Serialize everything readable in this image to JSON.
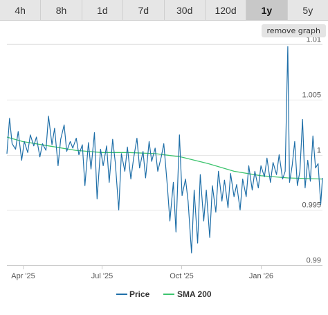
{
  "range_tabs": [
    {
      "label": "4h",
      "active": false
    },
    {
      "label": "8h",
      "active": false
    },
    {
      "label": "1d",
      "active": false
    },
    {
      "label": "7d",
      "active": false
    },
    {
      "label": "30d",
      "active": false
    },
    {
      "label": "120d",
      "active": false
    },
    {
      "label": "1y",
      "active": true
    },
    {
      "label": "5y",
      "active": false
    }
  ],
  "remove_graph_label": "remove graph",
  "chart_data": {
    "type": "line",
    "x_range": [
      "2025-03-14",
      "2026-03-13"
    ],
    "ylim": [
      0.99,
      1.01
    ],
    "y_ticks": [
      {
        "value": 0.99,
        "label": "0.99"
      },
      {
        "value": 0.995,
        "label": "0.995"
      },
      {
        "value": 1.0,
        "label": "1"
      },
      {
        "value": 1.005,
        "label": "1.005"
      },
      {
        "value": 1.01,
        "label": "1.01"
      }
    ],
    "x_ticks": [
      {
        "value": "2025-04-01",
        "label": "Apr '25"
      },
      {
        "value": "2025-07-01",
        "label": "Jul '25"
      },
      {
        "value": "2025-10-01",
        "label": "Oct '25"
      },
      {
        "value": "2026-01-01",
        "label": "Jan '26"
      }
    ],
    "grid": true,
    "legend_position": "bottom-center",
    "series": [
      {
        "name": "Price",
        "color": "#1f6fa8",
        "points": [
          [
            "2025-03-14",
            1.0001
          ],
          [
            "2025-03-17",
            1.0033
          ],
          [
            "2025-03-20",
            1.001
          ],
          [
            "2025-03-24",
            1.0005
          ],
          [
            "2025-03-27",
            1.0021
          ],
          [
            "2025-03-31",
            0.9995
          ],
          [
            "2025-04-03",
            1.0012
          ],
          [
            "2025-04-07",
            1.0002
          ],
          [
            "2025-04-10",
            1.0018
          ],
          [
            "2025-04-14",
            1.0008
          ],
          [
            "2025-04-17",
            1.0016
          ],
          [
            "2025-04-21",
            0.9998
          ],
          [
            "2025-04-24",
            1.001
          ],
          [
            "2025-04-28",
            1.0004
          ],
          [
            "2025-05-01",
            1.0035
          ],
          [
            "2025-05-05",
            1.0009
          ],
          [
            "2025-05-08",
            1.0024
          ],
          [
            "2025-05-12",
            0.999
          ],
          [
            "2025-05-15",
            1.0014
          ],
          [
            "2025-05-19",
            1.0027
          ],
          [
            "2025-05-22",
            1.0003
          ],
          [
            "2025-05-26",
            1.0012
          ],
          [
            "2025-05-29",
            1.0006
          ],
          [
            "2025-06-02",
            1.0015
          ],
          [
            "2025-06-05",
            1.0
          ],
          [
            "2025-06-09",
            1.0009
          ],
          [
            "2025-06-12",
            0.9972
          ],
          [
            "2025-06-16",
            1.0011
          ],
          [
            "2025-06-19",
            0.9987
          ],
          [
            "2025-06-23",
            1.002
          ],
          [
            "2025-06-26",
            0.996
          ],
          [
            "2025-06-30",
            1.0005
          ],
          [
            "2025-07-03",
            0.999
          ],
          [
            "2025-07-07",
            1.0008
          ],
          [
            "2025-07-10",
            0.9975
          ],
          [
            "2025-07-14",
            1.0014
          ],
          [
            "2025-07-17",
            0.9993
          ],
          [
            "2025-07-21",
            0.995
          ],
          [
            "2025-07-24",
            1.0001
          ],
          [
            "2025-07-28",
            0.9985
          ],
          [
            "2025-07-31",
            1.0007
          ],
          [
            "2025-08-04",
            0.9978
          ],
          [
            "2025-08-07",
            0.9996
          ],
          [
            "2025-08-11",
            1.0015
          ],
          [
            "2025-08-14",
            0.9988
          ],
          [
            "2025-08-18",
            1.0003
          ],
          [
            "2025-08-21",
            0.9979
          ],
          [
            "2025-08-25",
            1.0012
          ],
          [
            "2025-08-28",
            0.9994
          ],
          [
            "2025-09-01",
            1.0006
          ],
          [
            "2025-09-04",
            0.9985
          ],
          [
            "2025-09-08",
            0.9998
          ],
          [
            "2025-09-11",
            1.001
          ],
          [
            "2025-09-15",
            0.9972
          ],
          [
            "2025-09-18",
            0.994
          ],
          [
            "2025-09-22",
            0.9975
          ],
          [
            "2025-09-25",
            0.993
          ],
          [
            "2025-09-29",
            1.0018
          ],
          [
            "2025-10-02",
            0.9963
          ],
          [
            "2025-10-06",
            0.9978
          ],
          [
            "2025-10-09",
            0.9958
          ],
          [
            "2025-10-13",
            0.9911
          ],
          [
            "2025-10-16",
            0.9968
          ],
          [
            "2025-10-20",
            0.992
          ],
          [
            "2025-10-23",
            0.9982
          ],
          [
            "2025-10-27",
            0.994
          ],
          [
            "2025-10-30",
            0.9968
          ],
          [
            "2025-11-03",
            0.9925
          ],
          [
            "2025-11-06",
            0.9972
          ],
          [
            "2025-11-10",
            0.9948
          ],
          [
            "2025-11-13",
            0.9985
          ],
          [
            "2025-11-17",
            0.9958
          ],
          [
            "2025-11-20",
            0.9977
          ],
          [
            "2025-11-24",
            0.9952
          ],
          [
            "2025-11-27",
            0.9983
          ],
          [
            "2025-12-01",
            0.9962
          ],
          [
            "2025-12-04",
            0.9973
          ],
          [
            "2025-12-08",
            0.995
          ],
          [
            "2025-12-11",
            0.9978
          ],
          [
            "2025-12-15",
            0.9962
          ],
          [
            "2025-12-18",
            0.999
          ],
          [
            "2025-12-22",
            0.9968
          ],
          [
            "2025-12-25",
            0.9985
          ],
          [
            "2025-12-29",
            0.997
          ],
          [
            "2026-01-01",
            0.999
          ],
          [
            "2026-01-05",
            0.998
          ],
          [
            "2026-01-08",
            0.9997
          ],
          [
            "2026-01-12",
            0.9975
          ],
          [
            "2026-01-15",
            0.9993
          ],
          [
            "2026-01-19",
            0.9982
          ],
          [
            "2026-01-22",
            1.0
          ],
          [
            "2026-01-26",
            0.9978
          ],
          [
            "2026-01-29",
            0.9985
          ],
          [
            "2026-02-01",
            1.0098
          ],
          [
            "2026-02-03",
            0.9975
          ],
          [
            "2026-02-06",
            0.999
          ],
          [
            "2026-02-09",
            1.0012
          ],
          [
            "2026-02-12",
            0.9972
          ],
          [
            "2026-02-15",
            0.9985
          ],
          [
            "2026-02-18",
            1.0032
          ],
          [
            "2026-02-21",
            0.997
          ],
          [
            "2026-02-24",
            0.9995
          ],
          [
            "2026-02-27",
            0.9976
          ],
          [
            "2026-03-02",
            1.0017
          ],
          [
            "2026-03-05",
            0.9988
          ],
          [
            "2026-03-08",
            0.9992
          ],
          [
            "2026-03-11",
            0.9955
          ],
          [
            "2026-03-13",
            0.9979
          ]
        ]
      },
      {
        "name": "SMA 200",
        "color": "#3dc46e",
        "points": [
          [
            "2025-03-14",
            1.0016
          ],
          [
            "2025-04-01",
            1.0012
          ],
          [
            "2025-05-01",
            1.0008
          ],
          [
            "2025-06-01",
            1.0004
          ],
          [
            "2025-07-01",
            1.0002
          ],
          [
            "2025-08-01",
            1.0002
          ],
          [
            "2025-09-01",
            1.0001
          ],
          [
            "2025-10-01",
            0.9998
          ],
          [
            "2025-11-01",
            0.9992
          ],
          [
            "2025-12-01",
            0.9985
          ],
          [
            "2026-01-01",
            0.9981
          ],
          [
            "2026-02-01",
            0.9979
          ],
          [
            "2026-03-13",
            0.9978
          ]
        ]
      }
    ]
  }
}
